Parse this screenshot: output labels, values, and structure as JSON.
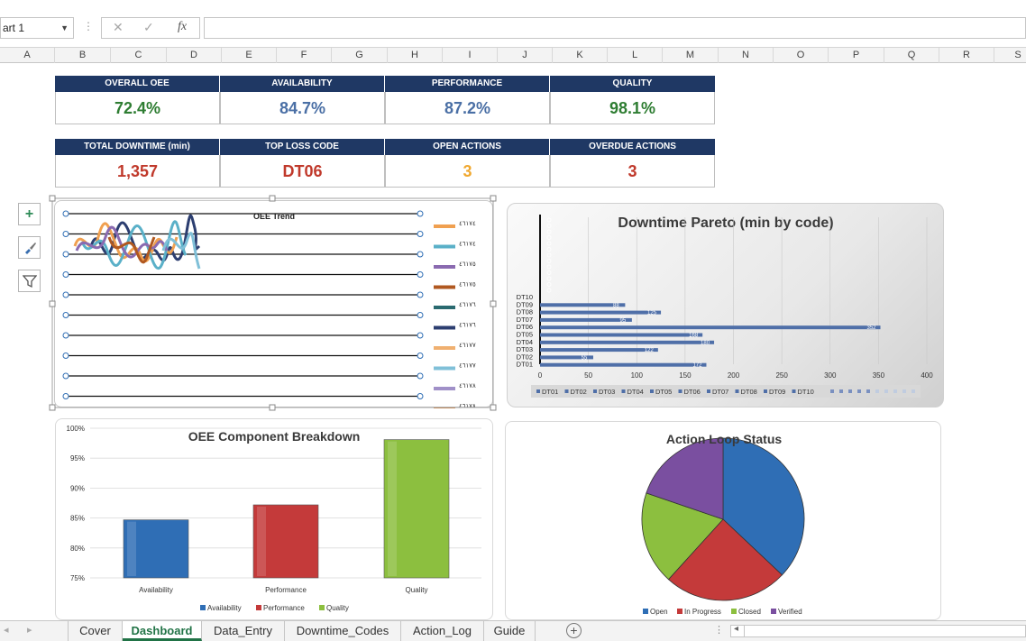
{
  "formula_bar": {
    "name_box": "art 1",
    "separator": "⋮",
    "cancel": "✕",
    "enter": "✓",
    "fx": "fx"
  },
  "columns": [
    "A",
    "B",
    "C",
    "D",
    "E",
    "F",
    "G",
    "H",
    "I",
    "J",
    "K",
    "L",
    "M",
    "N",
    "O",
    "P",
    "Q",
    "R",
    "S"
  ],
  "kpis_row1": [
    {
      "label": "OVERALL OEE",
      "value": "72.4%",
      "color": "#2e7d32"
    },
    {
      "label": "AVAILABILITY",
      "value": "84.7%",
      "color": "#4a6fa5"
    },
    {
      "label": "PERFORMANCE",
      "value": "87.2%",
      "color": "#4a6fa5"
    },
    {
      "label": "QUALITY",
      "value": "98.1%",
      "color": "#2e7d32"
    }
  ],
  "kpis_row2": [
    {
      "label": "TOTAL DOWNTIME (min)",
      "value": "1,357",
      "color": "#c0392b"
    },
    {
      "label": "TOP LOSS CODE",
      "value": "DT06",
      "color": "#c0392b"
    },
    {
      "label": "OPEN ACTIONS",
      "value": "3",
      "color": "#f0a830"
    },
    {
      "label": "OVERDUE ACTIONS",
      "value": "3",
      "color": "#c0392b"
    }
  ],
  "side_tools": [
    {
      "name": "add-chart-element-icon",
      "glyph": "+"
    },
    {
      "name": "chart-styles-brush-icon",
      "glyph": "🖌"
    },
    {
      "name": "chart-filter-icon",
      "glyph": "⏷"
    }
  ],
  "trend_chart": {
    "title": "OEE Trend",
    "legend": [
      "٤٦١٧٤",
      "٤٦١٧٤",
      "٤٦١٧٥",
      "٤٦١٧٥",
      "٤٦١٧٦",
      "٤٦١٧٦",
      "٤٦١٧٧",
      "٤٦١٧٧",
      "٤٦١٧٨",
      "٤٦١٧٨"
    ],
    "legend_colors": [
      "#f0a050",
      "#5ab0c8",
      "#8a6ab0",
      "#b05820",
      "#2a6a70",
      "#2c3e70",
      "#f0b070",
      "#80c0d8",
      "#a090c8",
      "#e07820"
    ]
  },
  "chart_data": [
    {
      "type": "bar",
      "title": "Downtime Pareto (min by code)",
      "orientation": "horizontal",
      "categories": [
        "DT01",
        "DT02",
        "DT03",
        "DT04",
        "DT05",
        "DT06",
        "DT07",
        "DT08",
        "DT09",
        "DT10"
      ],
      "values": [
        172,
        55,
        122,
        180,
        168,
        352,
        95,
        125,
        88,
        0
      ],
      "data_labels": [
        "172",
        "55",
        "122",
        "180",
        "168",
        "352",
        "95",
        "125",
        "88",
        ""
      ],
      "xlim": [
        0,
        400
      ],
      "xticks": [
        "0",
        "50",
        "100",
        "150",
        "200",
        "250",
        "300",
        "350",
        "400"
      ],
      "legend": [
        "DT01",
        "DT02",
        "DT03",
        "DT04",
        "DT05",
        "DT06",
        "DT07",
        "DT08",
        "DT09",
        "DT10"
      ],
      "bar_color": "#4f6fa8"
    },
    {
      "type": "bar",
      "title": "OEE Component Breakdown",
      "categories": [
        "Availability",
        "Performance",
        "Quality"
      ],
      "values": [
        84.7,
        87.2,
        98.1
      ],
      "colors": [
        "#2f6eb5",
        "#c43a3a",
        "#8cbf3f"
      ],
      "ylim": [
        75,
        100
      ],
      "yticks": [
        "75%",
        "80%",
        "85%",
        "90%",
        "95%",
        "100%"
      ],
      "legend": [
        "Availability",
        "Performance",
        "Quality"
      ]
    },
    {
      "type": "pie",
      "title": "Action Loop Status",
      "labels": [
        "Open",
        "In Progress",
        "Closed",
        "Verified"
      ],
      "values": [
        3,
        2,
        1.5,
        1.6
      ],
      "colors": [
        "#2f6eb5",
        "#c43a3a",
        "#8cbf3f",
        "#7a4fa0"
      ]
    }
  ],
  "sheet_tabs": [
    "Cover",
    "Dashboard",
    "Data_Entry",
    "Downtime_Codes",
    "Action_Log",
    "Guide"
  ],
  "active_tab": "Dashboard",
  "add_sheet": "+"
}
